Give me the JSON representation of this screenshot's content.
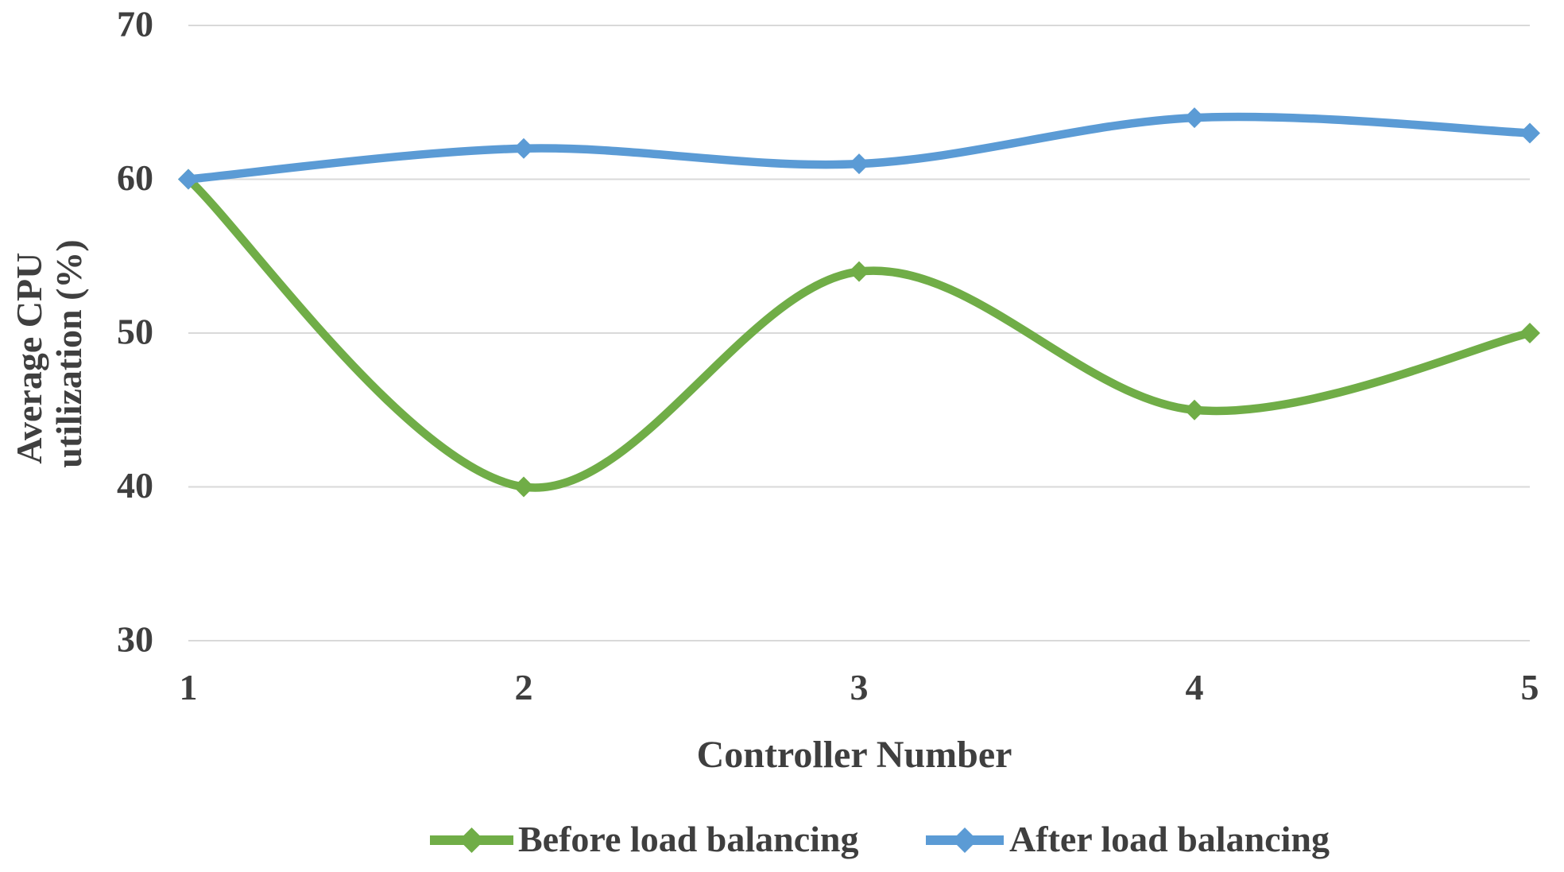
{
  "chart_data": {
    "type": "line",
    "title": "",
    "xlabel": "Controller Number",
    "ylabel": "Average CPU utilization (%)",
    "ylabel_lines": [
      "Average CPU",
      "utilization (%)"
    ],
    "categories": [
      "1",
      "2",
      "3",
      "4",
      "5"
    ],
    "series": [
      {
        "name": "Before load balancing",
        "values": [
          60,
          40,
          54,
          45,
          50
        ],
        "color": "#70AD47"
      },
      {
        "name": "After load balancing",
        "values": [
          60,
          62,
          61,
          64,
          63
        ],
        "color": "#5B9BD5"
      }
    ],
    "ylim": [
      30,
      70
    ],
    "yticks": [
      70,
      60,
      50,
      40,
      30
    ],
    "grid": "horizontal-only",
    "gridline_color": "#D9D9D9",
    "text_color": "#3F3F3F",
    "line_style": "smooth",
    "marker": "diamond",
    "legend_position": "bottom"
  }
}
